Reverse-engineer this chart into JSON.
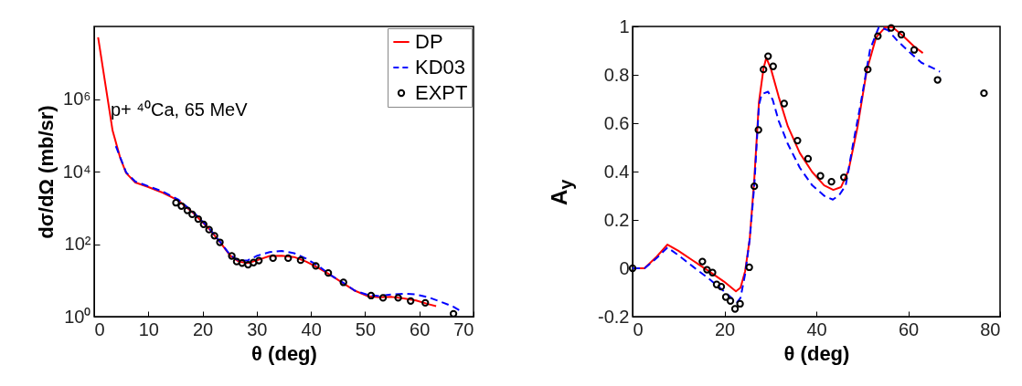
{
  "chart_data": [
    {
      "type": "line",
      "xlabel": "θ (deg)",
      "ylabel": "dσ/dΩ (mb/sr)",
      "xlim": [
        0,
        70
      ],
      "xticks": [
        0,
        10,
        20,
        30,
        40,
        50,
        60,
        70
      ],
      "ylim": [
        1,
        100000000
      ],
      "yticks": [
        {
          "value": 1,
          "label": "10⁰"
        },
        {
          "value": 100,
          "label": "10²"
        },
        {
          "value": 10000,
          "label": "10⁴"
        },
        {
          "value": 1000000,
          "label": "10⁶"
        }
      ],
      "log": "y",
      "grid": false,
      "legend": "top right",
      "annotations": [
        "p+ ⁴⁰Ca, 65 MeV"
      ],
      "series": [
        {
          "name": "DP",
          "color": "#ff0000",
          "line_style": "solid",
          "x": [
            0.73,
            2.0,
            3.4,
            4.8,
            5.9,
            7.6,
            9.9,
            12.7,
            15.5,
            18.3,
            21.1,
            23.4,
            25.1,
            26.7,
            28.4,
            30.1,
            32.4,
            34.6,
            36.9,
            39.1,
            41.4,
            43.6,
            45.9,
            48.1,
            50.4,
            52.6,
            54.9,
            57.1,
            59.4,
            61.7,
            63.1
          ],
          "values": [
            50000000,
            3000000,
            135000,
            24000,
            9100,
            5000,
            3800,
            2600,
            1600,
            720,
            275,
            105,
            48,
            33,
            30,
            36,
            47,
            48,
            44,
            33,
            22,
            14,
            8.5,
            5.2,
            3.7,
            3.4,
            3.5,
            3.2,
            2.8,
            2.2,
            1.95
          ]
        },
        {
          "name": "KD03",
          "color": "#0000ff",
          "line_style": "dashed",
          "x": [
            4.0,
            4.8,
            5.9,
            7.6,
            9.9,
            12.7,
            15.5,
            18.3,
            21.1,
            23.4,
            25.1,
            26.7,
            28.4,
            30.1,
            32.4,
            34.6,
            36.9,
            39.1,
            41.4,
            43.6,
            45.9,
            48.1,
            50.4,
            52.6,
            54.9,
            57.1,
            59.4,
            61.7,
            63.9,
            66.2,
            67.4
          ],
          "values": [
            50000,
            25000,
            9500,
            5300,
            4000,
            2800,
            1700,
            760,
            285,
            108,
            50,
            35,
            36,
            48,
            60,
            65,
            56,
            40,
            25,
            14,
            8.7,
            5.2,
            4.0,
            3.7,
            4.1,
            4.3,
            4.1,
            3.4,
            2.6,
            1.9,
            1.5
          ]
        },
        {
          "name": "EXPT",
          "type": "scatter",
          "color": "#000000",
          "marker": "circle",
          "x": [
            15.1,
            16.1,
            17.2,
            18.1,
            19.2,
            20.2,
            21.2,
            22.2,
            23.2,
            25.4,
            26.3,
            27.3,
            28.4,
            29.4,
            30.4,
            33.0,
            35.8,
            38.1,
            40.9,
            43.2,
            46.0,
            51.1,
            53.3,
            56.1,
            58.4,
            61.1,
            66.3
          ],
          "values": [
            1380,
            1120,
            850,
            660,
            490,
            350,
            250,
            170,
            112,
            47,
            33,
            30,
            27,
            31,
            35,
            41,
            41,
            36,
            25,
            16,
            8.8,
            3.8,
            3.3,
            3.3,
            2.7,
            2.4,
            1.2
          ]
        }
      ]
    },
    {
      "type": "line",
      "xlabel": "θ (deg)",
      "ylabel": "A$_{y}$",
      "xlim": [
        0,
        80
      ],
      "xticks": [
        0,
        20,
        40,
        60,
        80
      ],
      "ylim": [
        -0.2,
        1
      ],
      "yticks": [
        -0.2,
        0,
        0.2,
        0.4,
        0.6,
        0.8,
        1
      ],
      "grid": false,
      "series": [
        {
          "color": "#ff0000",
          "line_style": "solid",
          "x": [
            0,
            2.6,
            5.3,
            7.6,
            9.9,
            13.2,
            16.6,
            19.9,
            22.5,
            23.5,
            24.5,
            25.5,
            26.5,
            27.5,
            28.5,
            29.1,
            30.1,
            31.8,
            33.8,
            36.4,
            39.1,
            41.7,
            43.7,
            45.4,
            47.0,
            49.0,
            51.0,
            53.0,
            55.0,
            56.6,
            58.9,
            61.3,
            63.2
          ],
          "values": [
            0,
            0,
            0.049,
            0.098,
            0.073,
            0.031,
            -0.012,
            -0.055,
            -0.095,
            -0.08,
            -0.012,
            0.12,
            0.37,
            0.685,
            0.826,
            0.87,
            0.826,
            0.71,
            0.587,
            0.477,
            0.398,
            0.343,
            0.324,
            0.336,
            0.404,
            0.587,
            0.82,
            0.954,
            0.997,
            0.997,
            0.96,
            0.917,
            0.89
          ]
        },
        {
          "color": "#0000ff",
          "line_style": "dashed",
          "x": [
            0,
            2.6,
            5.3,
            7.6,
            9.9,
            13.2,
            16.6,
            19.9,
            21.5,
            22.8,
            23.5,
            24.5,
            25.5,
            26.5,
            27.5,
            28.1,
            29.5,
            30.5,
            31.8,
            33.8,
            36.4,
            39.1,
            41.7,
            43.6,
            45.0,
            46.4,
            48.0,
            49.7,
            51.7,
            53.6,
            55.6,
            57.6,
            60.3,
            62.9,
            65.6,
            66.9
          ],
          "values": [
            0,
            0,
            0.043,
            0.086,
            0.055,
            0.006,
            -0.043,
            -0.095,
            -0.122,
            -0.14,
            -0.122,
            -0.024,
            0.12,
            0.343,
            0.673,
            0.72,
            0.73,
            0.697,
            0.61,
            0.514,
            0.416,
            0.343,
            0.3,
            0.284,
            0.303,
            0.343,
            0.514,
            0.685,
            0.905,
            0.997,
            0.985,
            0.942,
            0.893,
            0.85,
            0.826,
            0.813
          ]
        },
        {
          "type": "scatter",
          "color": "#000000",
          "marker": "circle",
          "x": [
            0,
            15.2,
            16.2,
            17.4,
            18.3,
            19.3,
            20.3,
            21.3,
            22.3,
            23.4,
            25.4,
            26.5,
            27.4,
            28.5,
            29.5,
            30.6,
            33.0,
            35.9,
            38.2,
            40.9,
            43.3,
            46.0,
            51.2,
            53.4,
            56.3,
            58.5,
            61.3,
            66.4,
            76.5
          ],
          "values": [
            0,
            0.028,
            -0.006,
            -0.018,
            -0.067,
            -0.076,
            -0.119,
            -0.135,
            -0.168,
            -0.147,
            0.004,
            0.339,
            0.572,
            0.822,
            0.877,
            0.835,
            0.681,
            0.528,
            0.453,
            0.382,
            0.358,
            0.376,
            0.822,
            0.96,
            0.994,
            0.966,
            0.903,
            0.779,
            0.724
          ]
        }
      ]
    }
  ]
}
